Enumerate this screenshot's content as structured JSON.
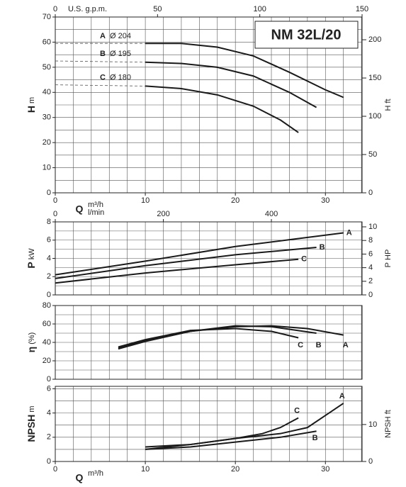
{
  "chart_data": [
    {
      "type": "line",
      "title": "NM 32L/20",
      "ylabel": "H",
      "yunit": "m",
      "y2label": "H",
      "y2unit": "ft",
      "xlabel": "Q",
      "xunit": "m³/h",
      "x2label": "U.S. g.p.m.",
      "xlim": [
        0,
        34.07
      ],
      "xticks": [
        0,
        10,
        20,
        30
      ],
      "x2lim": [
        0,
        150
      ],
      "x2ticks": [
        0,
        50,
        100,
        150
      ],
      "ylim": [
        0,
        70
      ],
      "yticks": [
        0,
        10,
        20,
        30,
        40,
        50,
        60,
        70
      ],
      "y2lim": [
        0,
        229.7
      ],
      "y2ticks": [
        0,
        50,
        100,
        150,
        200
      ],
      "xgrid": [
        0,
        2,
        4,
        6,
        8,
        10,
        12,
        14,
        16,
        18,
        20,
        22,
        24,
        26,
        28,
        30,
        32,
        34
      ],
      "ygrid": [
        0,
        5,
        10,
        15,
        20,
        25,
        30,
        35,
        40,
        45,
        50,
        55,
        60,
        65,
        70
      ],
      "dashed_until": 10,
      "series": [
        {
          "name": "A",
          "diameter": "Ø 204",
          "color": "#1a1a1a",
          "x": [
            0,
            10,
            14,
            18,
            22,
            26,
            30,
            32
          ],
          "values": [
            59.5,
            59.5,
            59.5,
            58,
            54.5,
            48,
            41,
            38
          ]
        },
        {
          "name": "B",
          "diameter": "Ø 195",
          "color": "#1a1a1a",
          "x": [
            0,
            10,
            14,
            18,
            22,
            26,
            29
          ],
          "values": [
            52.5,
            52,
            51.5,
            50,
            46.5,
            40,
            34
          ]
        },
        {
          "name": "C",
          "diameter": "Ø 180",
          "color": "#1a1a1a",
          "x": [
            0,
            10,
            14,
            18,
            22,
            25,
            27
          ],
          "values": [
            43,
            42.5,
            41.5,
            39,
            34.5,
            29,
            24
          ]
        }
      ]
    },
    {
      "type": "line",
      "ylabel": "P",
      "yunit": "kW",
      "y2label": "P",
      "y2unit": "HP",
      "x2label": "l/min",
      "xlim": [
        0,
        34.07
      ],
      "x2lim": [
        0,
        567.8
      ],
      "x2ticks": [
        0,
        200,
        400
      ],
      "ylim": [
        0,
        8
      ],
      "yticks": [
        0,
        2,
        4,
        6,
        8
      ],
      "y2lim": [
        0,
        10.73
      ],
      "y2ticks": [
        0,
        2,
        4,
        6,
        8,
        10
      ],
      "xgrid": [
        0,
        2,
        4,
        6,
        8,
        10,
        12,
        14,
        16,
        18,
        20,
        22,
        24,
        26,
        28,
        30,
        32,
        34
      ],
      "ygrid": [
        0,
        1,
        2,
        3,
        4,
        5,
        6,
        7,
        8
      ],
      "series": [
        {
          "name": "A",
          "color": "#1a1a1a",
          "x": [
            0,
            10,
            20,
            32
          ],
          "values": [
            2.2,
            3.7,
            5.3,
            6.8
          ]
        },
        {
          "name": "B",
          "color": "#1a1a1a",
          "x": [
            0,
            10,
            20,
            29
          ],
          "values": [
            1.8,
            3.2,
            4.4,
            5.2
          ]
        },
        {
          "name": "C",
          "color": "#1a1a1a",
          "x": [
            0,
            10,
            20,
            27
          ],
          "values": [
            1.3,
            2.4,
            3.3,
            3.9
          ]
        }
      ]
    },
    {
      "type": "line",
      "ylabel": "η",
      "yunit": "(%)",
      "xlim": [
        0,
        34.07
      ],
      "ylim": [
        0,
        80
      ],
      "yticks": [
        0,
        20,
        40,
        60,
        80
      ],
      "xgrid": [
        0,
        2,
        4,
        6,
        8,
        10,
        12,
        14,
        16,
        18,
        20,
        22,
        24,
        26,
        28,
        30,
        32,
        34
      ],
      "ygrid": [
        0,
        10,
        20,
        30,
        40,
        50,
        60,
        70,
        80
      ],
      "series": [
        {
          "name": "A",
          "color": "#1a1a1a",
          "x": [
            7,
            10,
            15,
            20,
            24,
            28,
            32
          ],
          "values": [
            33,
            41,
            52,
            57,
            58,
            55,
            48
          ]
        },
        {
          "name": "B",
          "color": "#1a1a1a",
          "x": [
            7,
            10,
            15,
            20,
            24,
            29
          ],
          "values": [
            34,
            42,
            52,
            58,
            57,
            50
          ]
        },
        {
          "name": "C",
          "color": "#1a1a1a",
          "x": [
            7,
            10,
            15,
            20,
            24,
            27
          ],
          "values": [
            35,
            43,
            53,
            55,
            52,
            45
          ]
        }
      ]
    },
    {
      "type": "line",
      "ylabel": "NPSH",
      "yunit": "m",
      "y2label": "NPSH",
      "y2unit": "ft",
      "xlabel": "Q",
      "xunit": "m³/h",
      "xlim": [
        0,
        34.07
      ],
      "xticks": [
        0,
        10,
        20,
        30
      ],
      "ylim": [
        0,
        6.2
      ],
      "yticks": [
        0,
        2,
        4,
        6
      ],
      "y2lim": [
        0,
        20.34
      ],
      "y2ticks": [
        0,
        10
      ],
      "xgrid": [
        0,
        2,
        4,
        6,
        8,
        10,
        12,
        14,
        16,
        18,
        20,
        22,
        24,
        26,
        28,
        30,
        32,
        34
      ],
      "ygrid": [
        0,
        1,
        2,
        3,
        4,
        5,
        6
      ],
      "series": [
        {
          "name": "A",
          "color": "#1a1a1a",
          "x": [
            10,
            15,
            20,
            25,
            28,
            30,
            32
          ],
          "values": [
            1.2,
            1.4,
            1.9,
            2.3,
            2.8,
            3.8,
            4.8
          ]
        },
        {
          "name": "B",
          "color": "#1a1a1a",
          "x": [
            10,
            15,
            20,
            25,
            29
          ],
          "values": [
            1.0,
            1.2,
            1.6,
            2.0,
            2.5
          ]
        },
        {
          "name": "C",
          "color": "#1a1a1a",
          "x": [
            10,
            15,
            20,
            23,
            25,
            27
          ],
          "values": [
            1.0,
            1.4,
            1.9,
            2.3,
            2.8,
            3.6
          ]
        }
      ]
    }
  ]
}
